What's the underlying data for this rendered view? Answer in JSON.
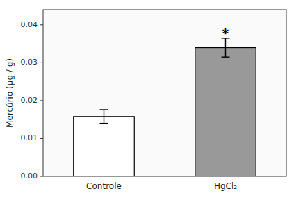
{
  "chart_data": {
    "type": "bar",
    "categories": [
      "Controle",
      "HgCl₂"
    ],
    "values": [
      0.0158,
      0.034
    ],
    "errors": [
      0.0018,
      0.0025
    ],
    "colors": [
      "#ffffff",
      "#999999"
    ],
    "ylabel": "Mercúrio (μg / g)",
    "ylim": [
      0.0,
      0.044
    ],
    "yticks": [
      {
        "value": 0.0,
        "label": "0.00"
      },
      0.01,
      0.02,
      0.03,
      0.04
    ],
    "annotations": [
      {
        "text": "*",
        "category": "HgCl₂",
        "y": 0.0378
      }
    ],
    "grid": false
  }
}
